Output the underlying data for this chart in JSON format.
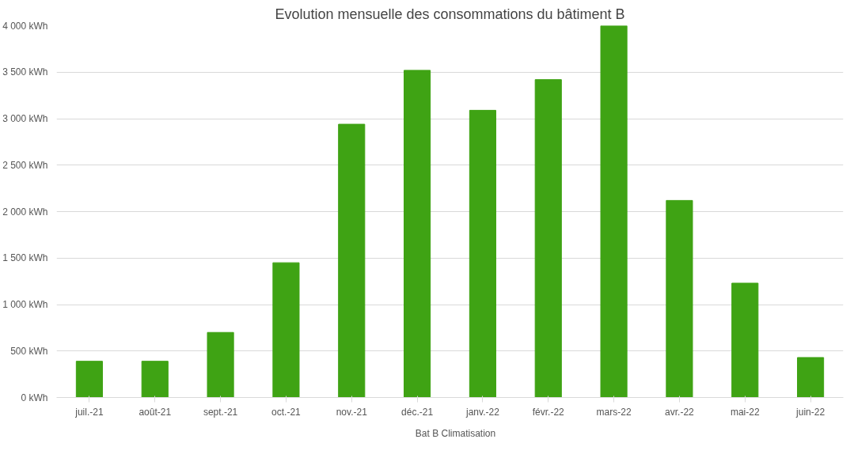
{
  "chart_data": {
    "type": "bar",
    "title": "Evolution mensuelle des consommations du bâtiment B",
    "categories": [
      "juil.-21",
      "août-21",
      "sept.-21",
      "oct.-21",
      "nov.-21",
      "déc.-21",
      "janv.-22",
      "févr.-22",
      "mars-22",
      "avr.-22",
      "mai-22",
      "juin-22"
    ],
    "series": [
      {
        "name": "Bat B Climatisation",
        "color": "#3fa314",
        "values": [
          390,
          390,
          700,
          1450,
          2940,
          3520,
          3090,
          3420,
          4000,
          2120,
          1230,
          430
        ]
      }
    ],
    "ylim": [
      0,
      4000
    ],
    "yticks": [
      {
        "value": 0,
        "label": "0 kWh"
      },
      {
        "value": 500,
        "label": "500 kWh"
      },
      {
        "value": 1000,
        "label": "1 000 kWh"
      },
      {
        "value": 1500,
        "label": "1 500 kWh"
      },
      {
        "value": 2000,
        "label": "2 000 kWh"
      },
      {
        "value": 2500,
        "label": "2 500 kWh"
      },
      {
        "value": 3000,
        "label": "3 000 kWh"
      },
      {
        "value": 3500,
        "label": "3 500 kWh"
      },
      {
        "value": 4000,
        "label": "4 000 kWh"
      }
    ],
    "grid": "y",
    "legend": "bottom"
  }
}
